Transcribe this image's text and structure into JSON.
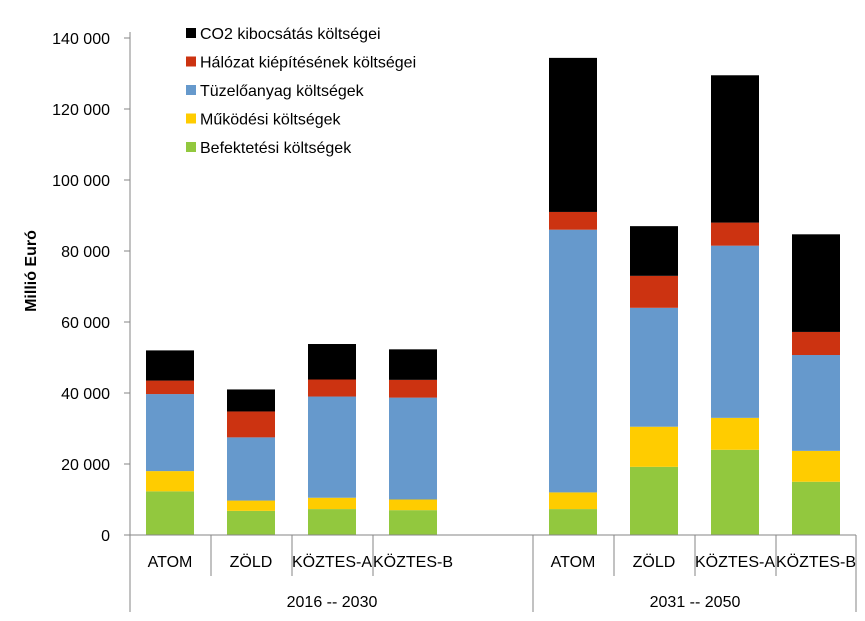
{
  "chart_data": {
    "type": "bar",
    "stacked": true,
    "ylabel": "Millió Euró",
    "ylim": [
      0,
      140000
    ],
    "yticks": [
      0,
      20000,
      40000,
      60000,
      80000,
      100000,
      120000,
      140000
    ],
    "ytick_labels": [
      "0",
      "20 000",
      "40 000",
      "60 000",
      "80 000",
      "100 000",
      "120 000",
      "140 000"
    ],
    "grid": false,
    "legend_position": "top-left",
    "groups": [
      {
        "label": "2016 -- 2030",
        "categories": [
          "ATOM",
          "ZÖLD",
          "KÖZTES-A",
          "KÖZTES-B"
        ]
      },
      {
        "label": "2031 -- 2050",
        "categories": [
          "ATOM",
          "ZÖLD",
          "KÖZTES-A",
          "KÖZTES-B"
        ]
      }
    ],
    "series": [
      {
        "name": "Befektetési költségek",
        "color": "#92C83E",
        "values": [
          12300,
          6800,
          7300,
          7000,
          7300,
          19200,
          24000,
          15000
        ]
      },
      {
        "name": "Működési költségek",
        "color": "#FFCC00",
        "values": [
          5700,
          2900,
          3200,
          3000,
          4700,
          11300,
          9000,
          8700
        ]
      },
      {
        "name": "Tüzelőanyag költségek",
        "color": "#6699CC",
        "values": [
          21700,
          17800,
          28500,
          28700,
          74000,
          33500,
          48500,
          27000
        ]
      },
      {
        "name": "Hálózat kiépítésének költségei",
        "color": "#CC3311",
        "values": [
          3800,
          7300,
          4800,
          5000,
          5000,
          9000,
          6500,
          6500
        ]
      },
      {
        "name": "CO2 kibocsátás költségei",
        "color": "#000000",
        "values": [
          8500,
          6200,
          10000,
          8600,
          43400,
          14000,
          41500,
          27500
        ]
      }
    ],
    "legend_order": [
      "CO2 kibocsátás költségei",
      "Hálózat kiépítésének költségei",
      "Tüzelőanyag költségek",
      "Működési költségek",
      "Befektetési költségek"
    ]
  }
}
